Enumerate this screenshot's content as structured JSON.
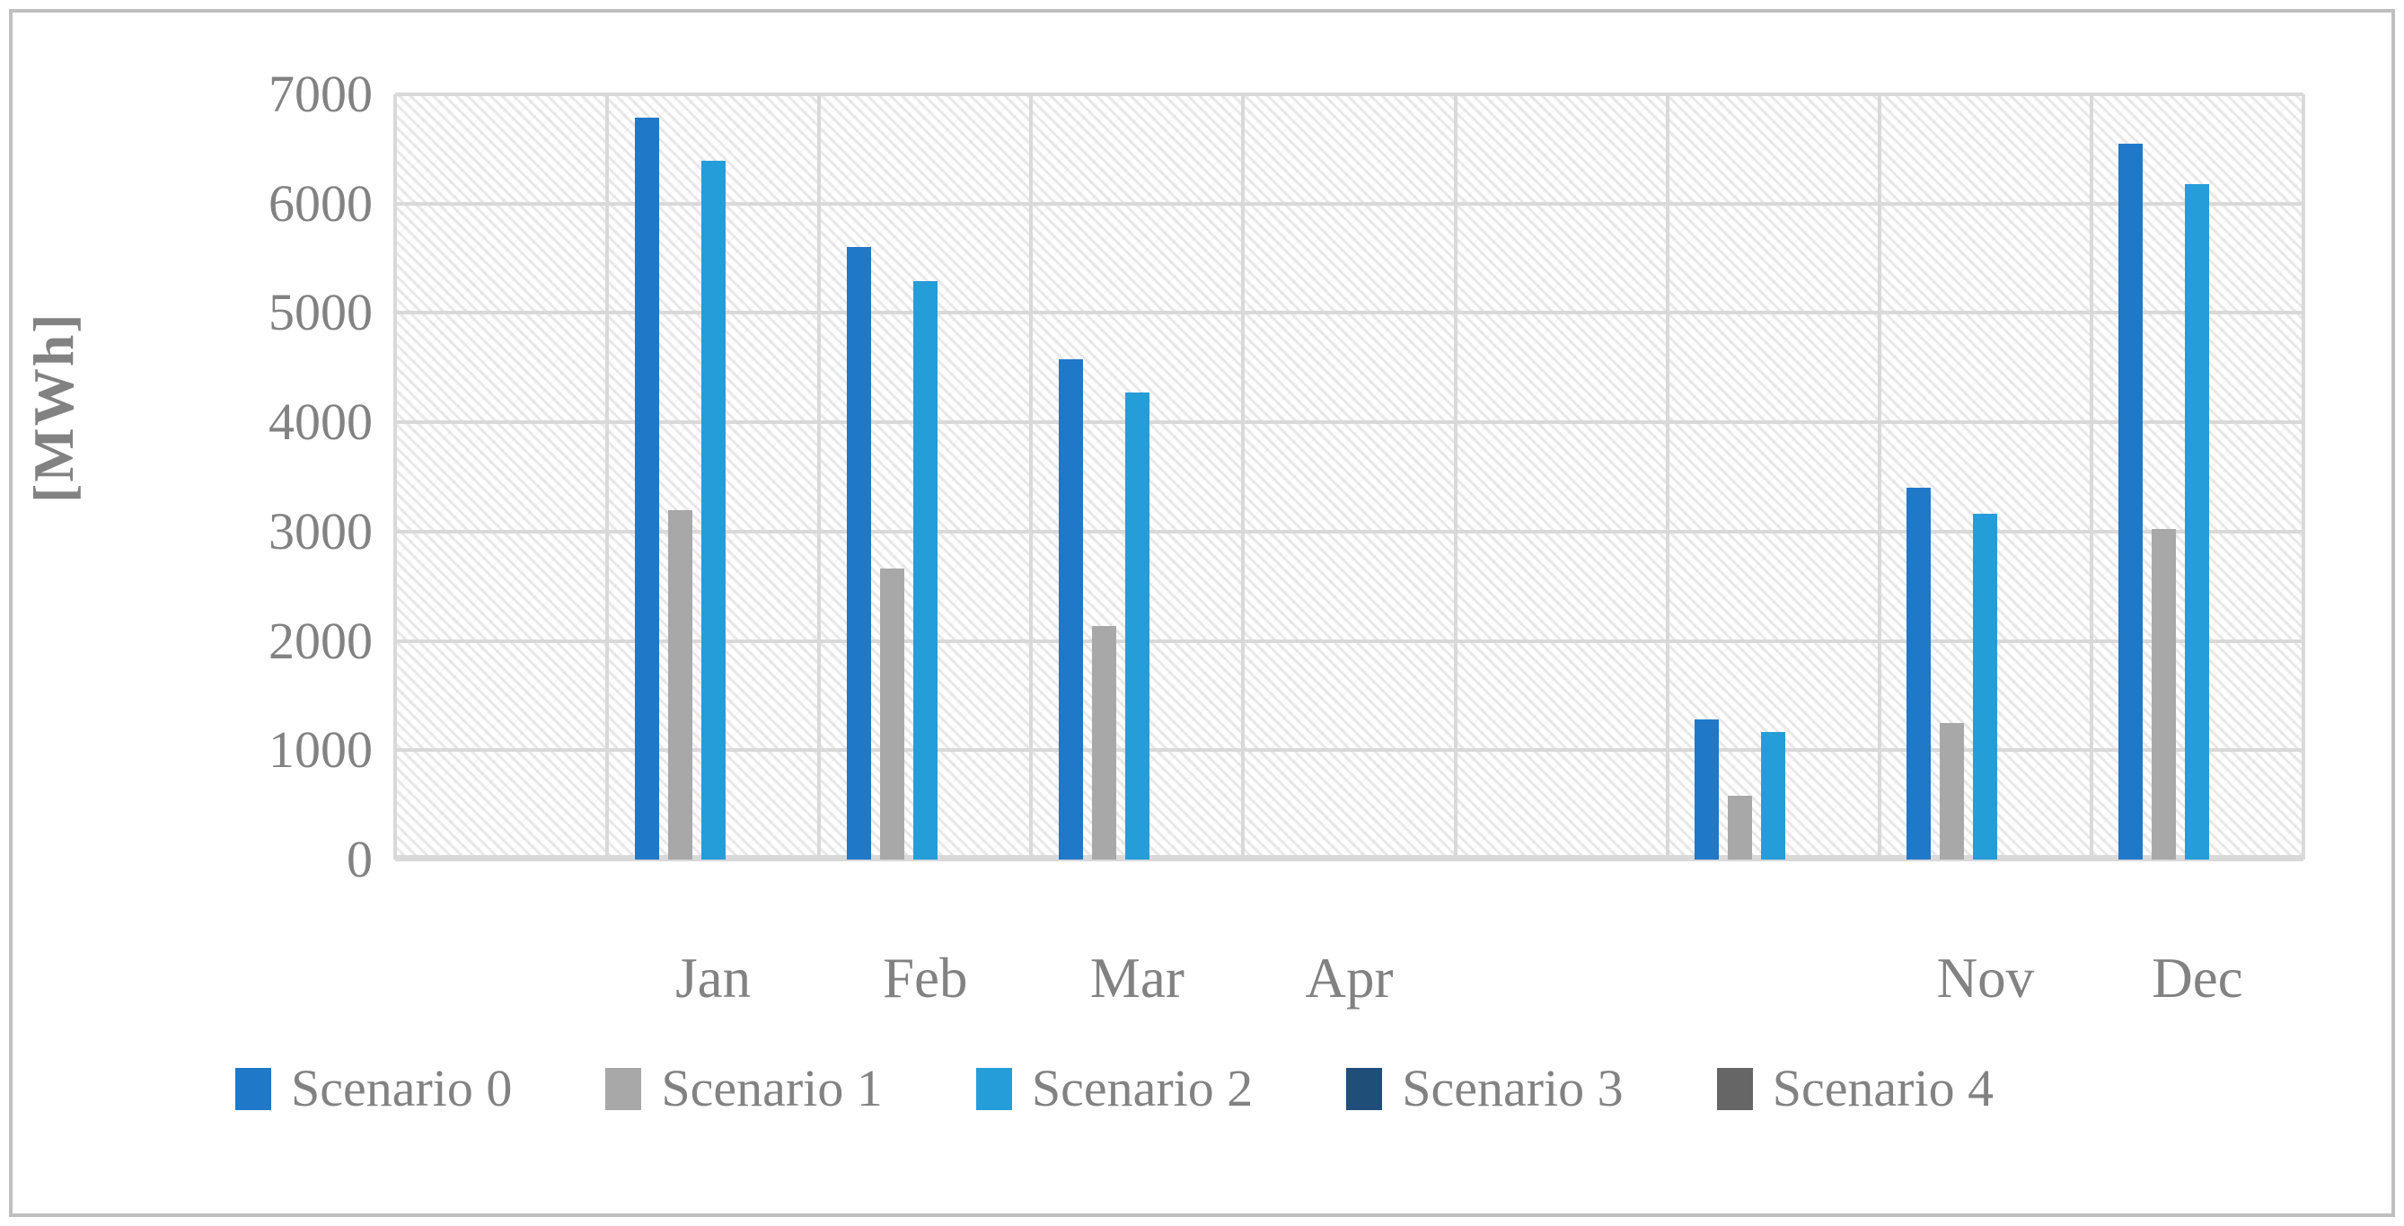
{
  "figure": {
    "ylabel": "[MWh]"
  },
  "colors": {
    "gridline": "#d9d9d9",
    "frame_border": "#bfbfbf",
    "axis_text": "#828282"
  },
  "chart_data": {
    "type": "bar",
    "title": "",
    "xlabel": "",
    "ylabel": "[MWh]",
    "ylim": [
      0,
      7000
    ],
    "y_tick_step": 1000,
    "y_ticks": [
      "7000",
      "6000",
      "5000",
      "4000",
      "3000",
      "2000",
      "1000",
      "0"
    ],
    "grid": true,
    "plot_background": "light-gray diagonal hatch pattern",
    "legend_position": "bottom",
    "categories": [
      "",
      "Jan",
      "Feb",
      "Mar",
      "Apr",
      "",
      "",
      "Nov",
      "Dec"
    ],
    "series": [
      {
        "name": "Scenario 0",
        "color": "#1F78C8",
        "values": [
          0,
          6790,
          5600,
          4580,
          0,
          0,
          1280,
          3400,
          6550
        ]
      },
      {
        "name": "Scenario 1",
        "color": "#A8A8A8",
        "values": [
          0,
          3200,
          2660,
          2140,
          0,
          0,
          580,
          1250,
          3020
        ]
      },
      {
        "name": "Scenario 2",
        "color": "#259DD9",
        "values": [
          0,
          6390,
          5290,
          4270,
          0,
          0,
          1170,
          3160,
          6180
        ]
      },
      {
        "name": "Scenario 3",
        "color": "#1F4E79",
        "values": [
          0,
          0,
          0,
          0,
          0,
          0,
          0,
          0,
          0
        ]
      },
      {
        "name": "Scenario 4",
        "color": "#666666",
        "values": [
          0,
          0,
          0,
          0,
          0,
          0,
          0,
          0,
          0
        ]
      }
    ]
  }
}
